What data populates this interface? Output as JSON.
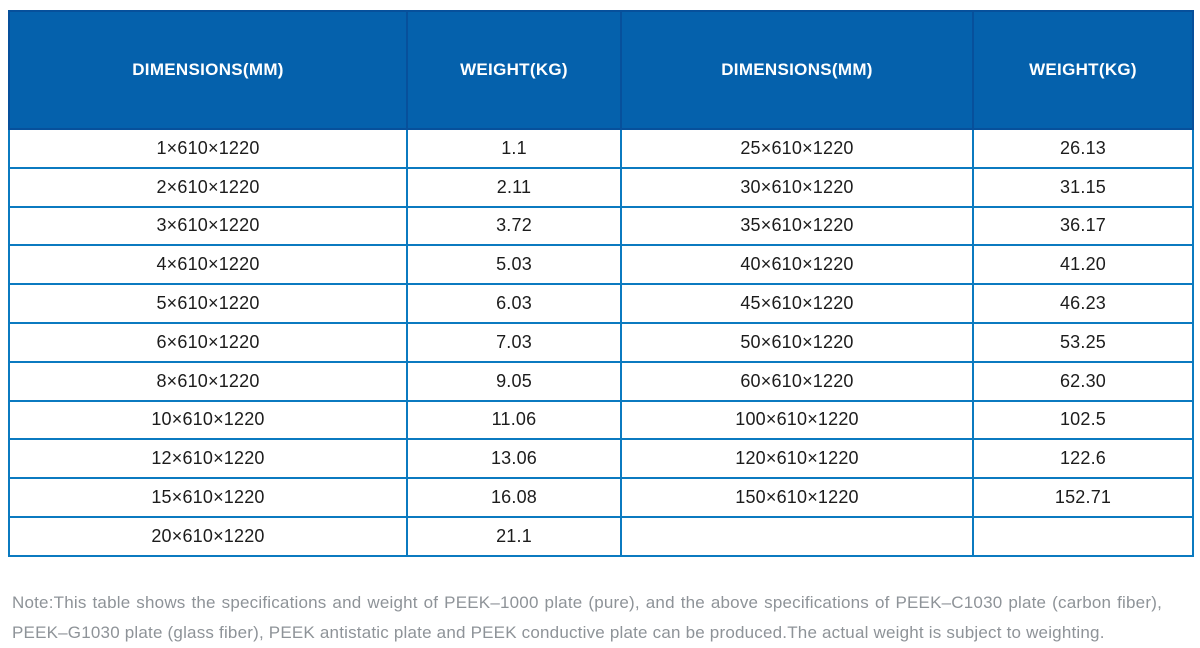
{
  "colors": {
    "header_bg": "#0561ac",
    "header_border": "#07509b",
    "grid_border": "#0b7ac0",
    "body_text": "#1c1c1c",
    "note_text": "#8e9398",
    "header_text": "#ffffff",
    "page_bg": "#ffffff"
  },
  "table": {
    "columns": [
      "DIMENSIONS(MM)",
      "WEIGHT(KG)",
      "DIMENSIONS(MM)",
      "WEIGHT(KG)"
    ],
    "rows": [
      [
        "1×610×1220",
        "1.1",
        "25×610×1220",
        "26.13"
      ],
      [
        "2×610×1220",
        "2.11",
        "30×610×1220",
        "31.15"
      ],
      [
        "3×610×1220",
        "3.72",
        "35×610×1220",
        "36.17"
      ],
      [
        "4×610×1220",
        "5.03",
        "40×610×1220",
        "41.20"
      ],
      [
        "5×610×1220",
        "6.03",
        "45×610×1220",
        "46.23"
      ],
      [
        "6×610×1220",
        "7.03",
        "50×610×1220",
        "53.25"
      ],
      [
        "8×610×1220",
        "9.05",
        "60×610×1220",
        "62.30"
      ],
      [
        "10×610×1220",
        "11.06",
        "100×610×1220",
        "102.5"
      ],
      [
        "12×610×1220",
        "13.06",
        "120×610×1220",
        "122.6"
      ],
      [
        "15×610×1220",
        "16.08",
        "150×610×1220",
        "152.71"
      ],
      [
        "20×610×1220",
        "21.1",
        "",
        ""
      ]
    ]
  },
  "note": {
    "lines": [
      "Note:This table shows the specifications and weight of PEEK–1000 plate (pure), and the above specifications of PEEK–C1030 plate (carbon fiber),",
      "PEEK–G1030 plate (glass fiber), PEEK antistatic plate and PEEK conductive plate can be produced.The actual weight is subject to weighting."
    ]
  }
}
